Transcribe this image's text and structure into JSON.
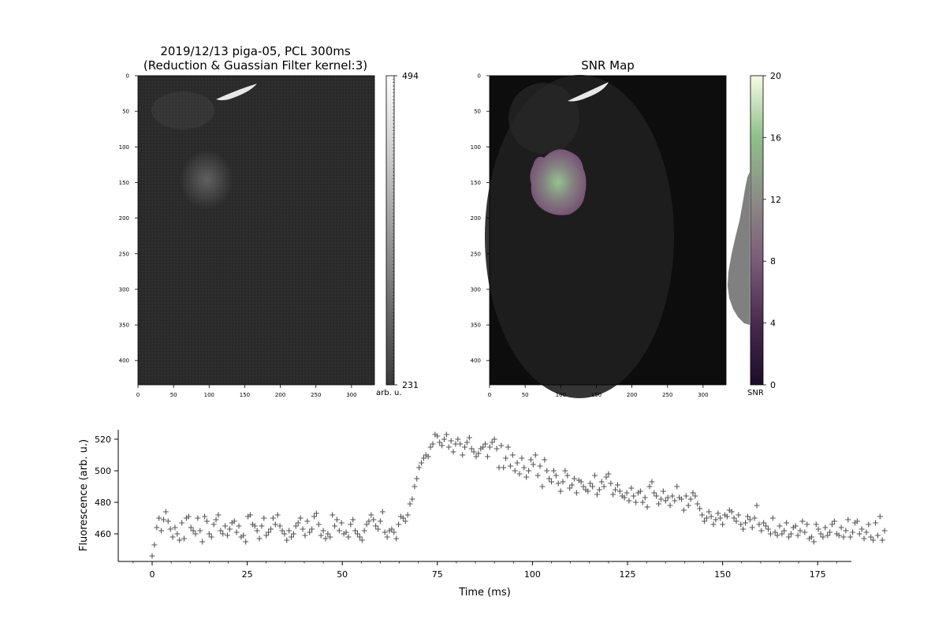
{
  "left_panel": {
    "title_line1": "2019/12/13 piga-05, PCL 300ms",
    "title_line2": "(Reduction & Guassian Filter kernel:3)",
    "x_ticks": [
      "0",
      "50",
      "100",
      "150",
      "200",
      "250",
      "300"
    ],
    "y_ticks": [
      "0",
      "50",
      "100",
      "150",
      "200",
      "250",
      "300",
      "350",
      "400"
    ],
    "colorbar": {
      "max_label": "494",
      "min_label": "231",
      "unit_label": "arb. u."
    }
  },
  "right_panel": {
    "title": "SNR Map",
    "x_ticks": [
      "0",
      "50",
      "100",
      "150",
      "200",
      "250",
      "300"
    ],
    "y_ticks": [
      "0",
      "50",
      "100",
      "150",
      "200",
      "250",
      "300",
      "350",
      "400"
    ],
    "colorbar": {
      "ticks": [
        "0",
        "4",
        "8",
        "12",
        "16",
        "20"
      ],
      "unit_label": "SNR"
    }
  },
  "colors": {
    "marker": "#555555",
    "overlay_low": "#4a2a4f",
    "overlay_high": "#8fbf8a",
    "histogram": "#808080"
  },
  "chart_data": {
    "type": "scatter",
    "marker": "plus",
    "xlabel": "Time (ms)",
    "ylabel": "Fluorescence (arb. u.)",
    "xlim": [
      -9,
      184
    ],
    "ylim": [
      442,
      527
    ],
    "x_ticks": [
      0,
      25,
      50,
      75,
      100,
      125,
      150,
      175
    ],
    "y_ticks": [
      460,
      480,
      500,
      520
    ],
    "sampling_ms": 0.6,
    "y": [
      446,
      453,
      464,
      470,
      462,
      469,
      474,
      468,
      463,
      458,
      464,
      460,
      456,
      467,
      457,
      470,
      471,
      464,
      462,
      460,
      470,
      462,
      455,
      471,
      468,
      460,
      458,
      466,
      469,
      472,
      462,
      460,
      465,
      459,
      463,
      467,
      468,
      461,
      465,
      458,
      459,
      455,
      471,
      472,
      466,
      465,
      462,
      457,
      465,
      470,
      459,
      461,
      463,
      470,
      466,
      472,
      465,
      462,
      460,
      456,
      462,
      458,
      460,
      465,
      467,
      470,
      463,
      459,
      468,
      461,
      463,
      471,
      473,
      466,
      459,
      462,
      457,
      460,
      458,
      472,
      465,
      469,
      462,
      467,
      460,
      461,
      458,
      466,
      469,
      462,
      460,
      458,
      456,
      462,
      466,
      468,
      472,
      469,
      465,
      463,
      468,
      474,
      461,
      458,
      462,
      463,
      461,
      457,
      466,
      471,
      470,
      468,
      472,
      479,
      482,
      490,
      495,
      502,
      505,
      508,
      510,
      509,
      515,
      517,
      523,
      522,
      518,
      516,
      520,
      523,
      515,
      519,
      512,
      517,
      520,
      517,
      510,
      515,
      518,
      521,
      514,
      512,
      509,
      511,
      514,
      515,
      517,
      509,
      515,
      518,
      520,
      514,
      502,
      516,
      502,
      508,
      515,
      503,
      510,
      500,
      505,
      498,
      508,
      502,
      496,
      500,
      507,
      504,
      510,
      497,
      503,
      490,
      507,
      500,
      495,
      493,
      500,
      497,
      492,
      487,
      493,
      500,
      497,
      489,
      491,
      495,
      486,
      494,
      493,
      490,
      488,
      487,
      492,
      490,
      497,
      485,
      488,
      493,
      490,
      496,
      498,
      492,
      485,
      488,
      491,
      487,
      484,
      483,
      486,
      481,
      489,
      484,
      480,
      486,
      487,
      480,
      483,
      477,
      490,
      493,
      486,
      484,
      479,
      482,
      487,
      481,
      483,
      478,
      484,
      481,
      490,
      483,
      482,
      475,
      484,
      478,
      482,
      486,
      484,
      479,
      476,
      472,
      468,
      470,
      474,
      471,
      466,
      469,
      473,
      470,
      466,
      472,
      471,
      475,
      474,
      470,
      468,
      472,
      466,
      463,
      467,
      471,
      469,
      464,
      470,
      478,
      466,
      462,
      467,
      465,
      463,
      460,
      470,
      461,
      459,
      465,
      460,
      462,
      467,
      458,
      460,
      464,
      465,
      459,
      462,
      468,
      461,
      466,
      457,
      458,
      455,
      466,
      463,
      460,
      458,
      464,
      459,
      461,
      466,
      468,
      460,
      459,
      464,
      458,
      462,
      469,
      458,
      461,
      467,
      468,
      460,
      463,
      457,
      461,
      466,
      458,
      456,
      467,
      459,
      471,
      456,
      462
    ]
  }
}
